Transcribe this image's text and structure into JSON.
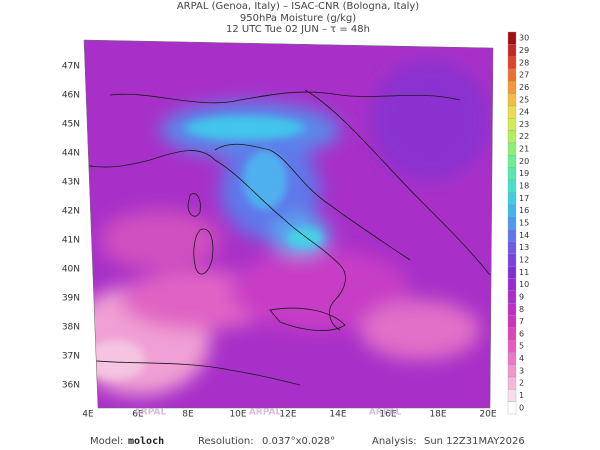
{
  "header": {
    "line1": "ARPAL (Genoa, Italy)  –  ISAC-CNR (Bologna, Italy)",
    "line2": "950hPa Moisture (g/kg)",
    "line3": "12 UTC Tue 02 JUN  –  τ = 48h"
  },
  "map": {
    "lat_labels": [
      "47N",
      "46N",
      "45N",
      "44N",
      "43N",
      "42N",
      "41N",
      "40N",
      "39N",
      "38N",
      "37N",
      "36N"
    ],
    "lon_labels": [
      "4E",
      "6E",
      "8E",
      "10E",
      "12E",
      "14E",
      "16E",
      "18E",
      "20E"
    ],
    "watermark": "ARPAL"
  },
  "colorbar": {
    "labels": [
      0,
      1,
      2,
      3,
      4,
      5,
      6,
      7,
      8,
      9,
      10,
      11,
      12,
      13,
      14,
      15,
      16,
      17,
      18,
      19,
      20,
      21,
      22,
      23,
      24,
      25,
      26,
      27,
      28,
      29,
      30
    ],
    "colors": [
      "#ffffff",
      "#f9dcea",
      "#f5b8da",
      "#f096cc",
      "#ea78c4",
      "#e35cbe",
      "#dc44bc",
      "#cf34c0",
      "#bf2ec6",
      "#ac2ccc",
      "#982cd2",
      "#842ed8",
      "#7a40e0",
      "#6e5ae6",
      "#5e78ea",
      "#4f98ec",
      "#42b6ea",
      "#3ecfe2",
      "#44e0cc",
      "#56e8b0",
      "#6eee92",
      "#8cf078",
      "#b0f060",
      "#d0ec50",
      "#ecdc48",
      "#f4bc40",
      "#f49838",
      "#ee7030",
      "#e04428",
      "#c82620",
      "#a01010"
    ]
  },
  "footer": {
    "model_label": "Model:",
    "model": "moloch",
    "resolution_label": "Resolution:",
    "resolution": "0.037°x0.028°",
    "analysis_label": "Analysis:",
    "analysis": "Sun 12Z31MAY2026"
  }
}
